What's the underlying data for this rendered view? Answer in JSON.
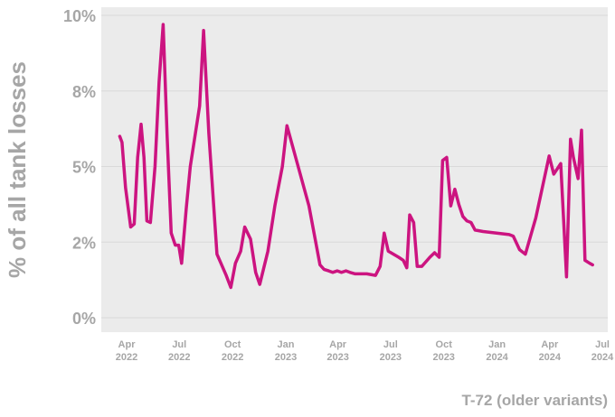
{
  "chart_data": {
    "type": "line",
    "title": "",
    "ylabel": "% of all tank losses",
    "xlabel": "T-72 (older variants)",
    "ylim": [
      0,
      10
    ],
    "xlim": [
      "2022-02-24",
      "2024-06-20"
    ],
    "grid": true,
    "colors": {
      "line": "#cc1480",
      "plot_bg": "#ebebeb",
      "grid": "#d9d9d9",
      "text": "#a6a6a6"
    },
    "y_ticks": [
      {
        "value": 0,
        "label": "0%"
      },
      {
        "value": 2.5,
        "label": "2%"
      },
      {
        "value": 5,
        "label": "5%"
      },
      {
        "value": 7.5,
        "label": "8%"
      },
      {
        "value": 10,
        "label": "10%"
      }
    ],
    "x_ticks": [
      {
        "date": "2022-04-01",
        "month": "Apr",
        "year": "2022"
      },
      {
        "date": "2022-07-01",
        "month": "Jul",
        "year": "2022"
      },
      {
        "date": "2022-10-01",
        "month": "Oct",
        "year": "2022"
      },
      {
        "date": "2023-01-01",
        "month": "Jan",
        "year": "2023"
      },
      {
        "date": "2023-04-01",
        "month": "Apr",
        "year": "2023"
      },
      {
        "date": "2023-07-01",
        "month": "Jul",
        "year": "2023"
      },
      {
        "date": "2023-10-01",
        "month": "Oct",
        "year": "2023"
      },
      {
        "date": "2024-01-01",
        "month": "Jan",
        "year": "2024"
      },
      {
        "date": "2024-04-01",
        "month": "Apr",
        "year": "2024"
      },
      {
        "date": "2024-07-01",
        "month": "Jul",
        "year": "2024"
      }
    ],
    "series": [
      {
        "points": [
          [
            "2022-03-20",
            6.0
          ],
          [
            "2022-03-24",
            5.8
          ],
          [
            "2022-03-30",
            4.3
          ],
          [
            "2022-04-08",
            3.0
          ],
          [
            "2022-04-14",
            3.1
          ],
          [
            "2022-04-20",
            5.3
          ],
          [
            "2022-04-26",
            6.4
          ],
          [
            "2022-05-01",
            5.3
          ],
          [
            "2022-05-06",
            3.2
          ],
          [
            "2022-05-12",
            3.15
          ],
          [
            "2022-05-20",
            5.0
          ],
          [
            "2022-05-27",
            7.8
          ],
          [
            "2022-06-03",
            9.7
          ],
          [
            "2022-06-10",
            6.0
          ],
          [
            "2022-06-17",
            2.8
          ],
          [
            "2022-06-24",
            2.4
          ],
          [
            "2022-06-30",
            2.4
          ],
          [
            "2022-07-05",
            1.8
          ],
          [
            "2022-07-13",
            3.6
          ],
          [
            "2022-07-20",
            5.0
          ],
          [
            "2022-08-05",
            7.0
          ],
          [
            "2022-08-12",
            9.5
          ],
          [
            "2022-08-21",
            6.1
          ],
          [
            "2022-09-04",
            2.1
          ],
          [
            "2022-09-20",
            1.4
          ],
          [
            "2022-09-28",
            1.0
          ],
          [
            "2022-10-06",
            1.8
          ],
          [
            "2022-10-15",
            2.2
          ],
          [
            "2022-10-22",
            3.0
          ],
          [
            "2022-11-01",
            2.6
          ],
          [
            "2022-11-10",
            1.5
          ],
          [
            "2022-11-17",
            1.1
          ],
          [
            "2022-12-01",
            2.2
          ],
          [
            "2022-12-13",
            3.7
          ],
          [
            "2022-12-26",
            5.0
          ],
          [
            "2023-01-03",
            6.35
          ],
          [
            "2023-02-10",
            3.7
          ],
          [
            "2023-03-01",
            1.75
          ],
          [
            "2023-03-08",
            1.6
          ],
          [
            "2023-03-16",
            1.55
          ],
          [
            "2023-03-23",
            1.5
          ],
          [
            "2023-03-31",
            1.55
          ],
          [
            "2023-04-07",
            1.5
          ],
          [
            "2023-04-15",
            1.55
          ],
          [
            "2023-04-22",
            1.5
          ],
          [
            "2023-05-01",
            1.45
          ],
          [
            "2023-05-21",
            1.45
          ],
          [
            "2023-06-05",
            1.4
          ],
          [
            "2023-06-13",
            1.7
          ],
          [
            "2023-06-20",
            2.8
          ],
          [
            "2023-06-27",
            2.2
          ],
          [
            "2023-07-15",
            2.0
          ],
          [
            "2023-07-23",
            1.9
          ],
          [
            "2023-07-29",
            1.65
          ],
          [
            "2023-08-03",
            3.4
          ],
          [
            "2023-08-10",
            3.15
          ],
          [
            "2023-08-16",
            1.7
          ],
          [
            "2023-08-24",
            1.7
          ],
          [
            "2023-09-07",
            2.0
          ],
          [
            "2023-09-15",
            2.15
          ],
          [
            "2023-09-23",
            2.0
          ],
          [
            "2023-09-29",
            5.2
          ],
          [
            "2023-10-06",
            5.3
          ],
          [
            "2023-10-13",
            3.7
          ],
          [
            "2023-10-20",
            4.25
          ],
          [
            "2023-10-27",
            3.75
          ],
          [
            "2023-11-03",
            3.35
          ],
          [
            "2023-11-10",
            3.2
          ],
          [
            "2023-11-17",
            3.15
          ],
          [
            "2023-11-24",
            2.9
          ],
          [
            "2023-12-08",
            2.85
          ],
          [
            "2024-01-22",
            2.75
          ],
          [
            "2024-01-29",
            2.7
          ],
          [
            "2024-02-09",
            2.25
          ],
          [
            "2024-02-19",
            2.1
          ],
          [
            "2024-03-08",
            3.3
          ],
          [
            "2024-03-31",
            5.35
          ],
          [
            "2024-04-08",
            4.75
          ],
          [
            "2024-04-20",
            5.1
          ],
          [
            "2024-04-30",
            1.35
          ],
          [
            "2024-05-07",
            5.9
          ],
          [
            "2024-05-12",
            5.3
          ],
          [
            "2024-05-20",
            4.6
          ],
          [
            "2024-05-26",
            6.2
          ],
          [
            "2024-06-01",
            1.9
          ],
          [
            "2024-06-09",
            1.8
          ],
          [
            "2024-06-14",
            1.75
          ]
        ]
      }
    ]
  }
}
